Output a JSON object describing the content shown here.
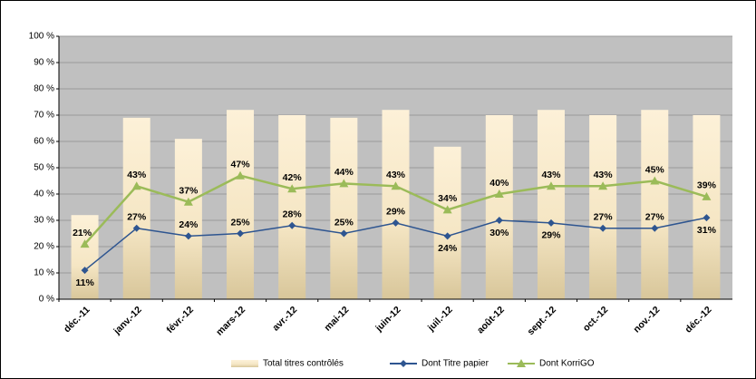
{
  "chart_data": {
    "type": "bar",
    "categories": [
      "déc.-11",
      "janv.-12",
      "févr.-12",
      "mars-12",
      "avr.-12",
      "mai-12",
      "juin-12",
      "juil.-12",
      "août-12",
      "sept.-12",
      "oct.-12",
      "nov.-12",
      "déc.-12"
    ],
    "series": [
      {
        "name": "Total titres contrôlés",
        "type": "bar",
        "color": "#f7e7c3",
        "values": [
          32,
          69,
          61,
          72,
          70,
          69,
          72,
          58,
          70,
          72,
          70,
          72,
          70
        ]
      },
      {
        "name": "Dont Titre papier",
        "type": "line",
        "color": "#2e5590",
        "marker": "diamond",
        "values": [
          11,
          27,
          24,
          25,
          28,
          25,
          29,
          24,
          30,
          29,
          27,
          27,
          31
        ],
        "value_labels": [
          "11%",
          "27%",
          "24%",
          "25%",
          "28%",
          "25%",
          "29%",
          "24%",
          "30%",
          "29%",
          "27%",
          "27%",
          "31%"
        ]
      },
      {
        "name": "Dont KorriGO",
        "type": "line",
        "color": "#9bbb59",
        "marker": "triangle",
        "values": [
          21,
          43,
          37,
          47,
          42,
          44,
          43,
          34,
          40,
          43,
          43,
          45,
          39
        ],
        "value_labels": [
          "21%",
          "43%",
          "37%",
          "47%",
          "42%",
          "44%",
          "43%",
          "34%",
          "40%",
          "43%",
          "43%",
          "45%",
          "39%"
        ]
      }
    ],
    "ylim": [
      0,
      100
    ],
    "yticks": [
      {
        "value": 0,
        "label": "0 %"
      },
      {
        "value": 10,
        "label": "10 %"
      },
      {
        "value": 20,
        "label": "20 %"
      },
      {
        "value": 30,
        "label": "30 %"
      },
      {
        "value": 40,
        "label": "40 %"
      },
      {
        "value": 50,
        "label": "50 %"
      },
      {
        "value": 60,
        "label": "60 %"
      },
      {
        "value": 70,
        "label": "70 %"
      },
      {
        "value": 80,
        "label": "80 %"
      },
      {
        "value": 90,
        "label": "90 %"
      },
      {
        "value": 100,
        "label": "100 %"
      }
    ],
    "grid": true,
    "legend": "bottom"
  }
}
